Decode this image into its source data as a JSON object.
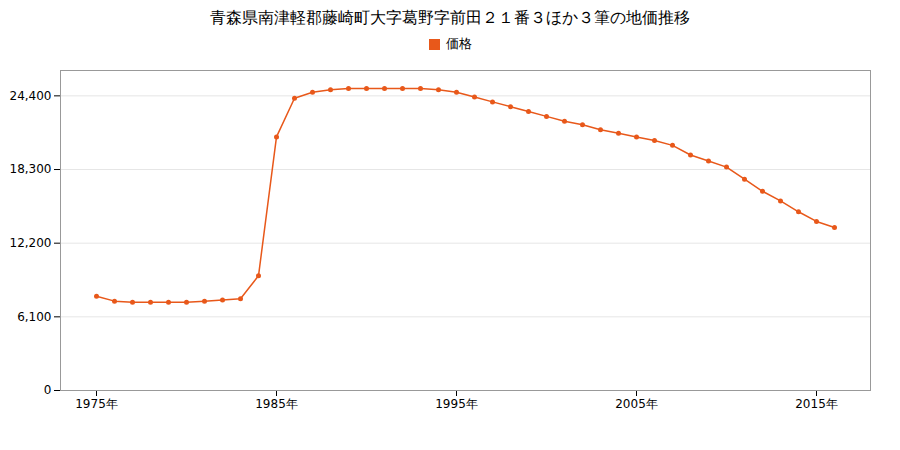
{
  "chart_data": {
    "type": "line",
    "title": "青森県南津軽郡藤崎町大字葛野字前田２１番３ほか３筆の地価推移",
    "x": [
      1975,
      1976,
      1977,
      1978,
      1979,
      1980,
      1981,
      1982,
      1983,
      1984,
      1985,
      1986,
      1987,
      1988,
      1989,
      1990,
      1991,
      1992,
      1993,
      1994,
      1995,
      1996,
      1997,
      1998,
      1999,
      2000,
      2001,
      2002,
      2003,
      2004,
      2005,
      2006,
      2007,
      2008,
      2009,
      2010,
      2011,
      2012,
      2013,
      2014,
      2015,
      2016
    ],
    "series": [
      {
        "name": "価格",
        "color": "#E8581A",
        "marker": "circle",
        "values": [
          7800,
          7400,
          7300,
          7300,
          7300,
          7300,
          7400,
          7500,
          7600,
          9500,
          21000,
          24200,
          24700,
          24900,
          25000,
          25000,
          25000,
          25000,
          25000,
          24900,
          24700,
          24300,
          23900,
          23500,
          23100,
          22700,
          22300,
          22000,
          21600,
          21300,
          21000,
          20700,
          20300,
          19500,
          19000,
          18500,
          17500,
          16500,
          15700,
          14800,
          14000,
          13500
        ]
      }
    ],
    "xlim": [
      1973,
      2018
    ],
    "xticks": [
      {
        "value": 1975,
        "label": "1975年"
      },
      {
        "value": 1985,
        "label": "1985年"
      },
      {
        "value": 1995,
        "label": "1995年"
      },
      {
        "value": 2005,
        "label": "2005年"
      },
      {
        "value": 2015,
        "label": "2015年"
      }
    ],
    "ylim": [
      0,
      26500
    ],
    "yticks": [
      0,
      {
        "value": 6100,
        "label": "6,100"
      },
      {
        "value": 12200,
        "label": "12,200"
      },
      {
        "value": 18300,
        "label": "18,300"
      },
      {
        "value": 24400,
        "label": "24,400"
      }
    ],
    "grid": true,
    "legend": "top"
  }
}
